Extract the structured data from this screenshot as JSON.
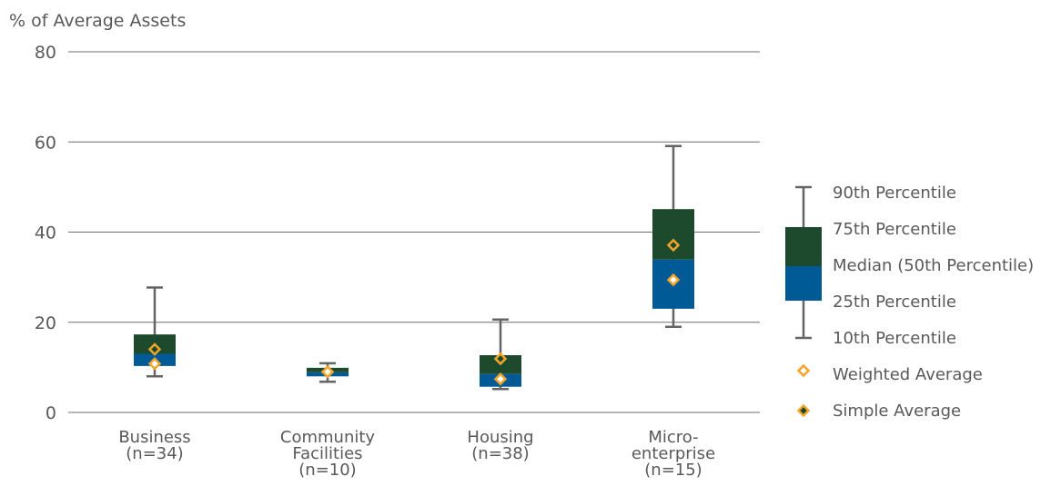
{
  "chart_data": {
    "type": "boxplot",
    "ylabel": "% of Average Assets",
    "ylim": [
      0,
      80
    ],
    "yticks": [
      0,
      20,
      40,
      60,
      80
    ],
    "grid": true,
    "legend_position": "right",
    "categories": [
      {
        "lines": [
          "Business",
          "(n=34)"
        ],
        "p10": 8,
        "p25": 10.3,
        "median": 13,
        "p75": 17.3,
        "p90": 27.7,
        "weighted_avg": 10.8,
        "simple_avg": 14
      },
      {
        "lines": [
          "Community",
          "Facilities",
          "(n=10)"
        ],
        "p10": 6.8,
        "p25": 8,
        "median": 8.9,
        "p75": 9.9,
        "p90": 10.9,
        "weighted_avg": 9,
        "simple_avg": 9
      },
      {
        "lines": [
          "Housing",
          "(n=38)"
        ],
        "p10": 5.2,
        "p25": 5.7,
        "median": 8.5,
        "p75": 12.7,
        "p90": 20.6,
        "weighted_avg": 7.4,
        "simple_avg": 11.9
      },
      {
        "lines": [
          "Micro-",
          "enterprise",
          "(n=15)"
        ],
        "p10": 19,
        "p25": 23,
        "median": 33.9,
        "p75": 45.1,
        "p90": 59.1,
        "weighted_avg": 29.4,
        "simple_avg": 37.1
      }
    ],
    "legend": [
      "90th Percentile",
      "75th Percentile",
      "Median (50th Percentile)",
      "25th Percentile",
      "10th Percentile",
      "Weighted Average",
      "Simple Average"
    ],
    "colors": {
      "upper_box": "#1d4a2c",
      "lower_box": "#005a96",
      "whisker": "#646464",
      "marker_outline": "#f4a428",
      "weighted_fill": "#ffffff",
      "simple_fill": "#1d4a2c",
      "grid": "#6e6e6e"
    }
  }
}
